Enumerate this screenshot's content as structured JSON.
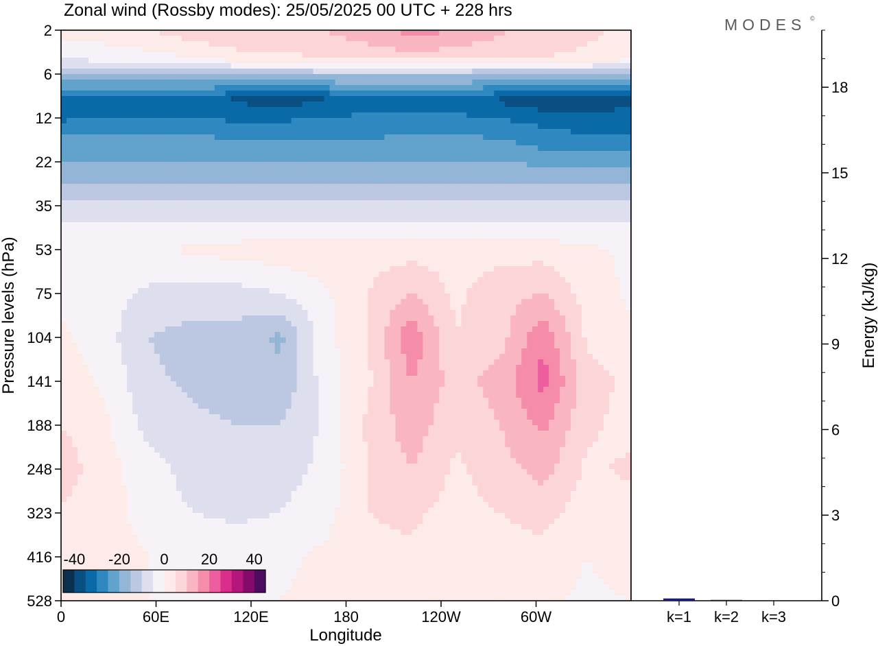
{
  "chart_data": [
    {
      "type": "heatmap",
      "title": "Zonal wind (Rossby modes):  25/05/2025  00 UTC  + 228 hrs",
      "xlabel": "Longitude",
      "ylabel": "Pressure levels (hPa)",
      "x_ticks": [
        "0",
        "60E",
        "120E",
        "180",
        "120W",
        "60W"
      ],
      "x_tick_values": [
        0,
        60,
        120,
        180,
        240,
        300
      ],
      "xlim": [
        0,
        360
      ],
      "y_ticks": [
        "2",
        "6",
        "12",
        "22",
        "35",
        "53",
        "75",
        "104",
        "141",
        "188",
        "248",
        "323",
        "416",
        "528"
      ],
      "colorbar": {
        "tick_labels": [
          "-40",
          "-20",
          "0",
          "20",
          "40"
        ],
        "tick_values": [
          -40,
          -20,
          0,
          20,
          40
        ],
        "bins": [
          -45,
          -40,
          -35,
          -30,
          -25,
          -20,
          -15,
          -10,
          -5,
          0,
          5,
          10,
          15,
          20,
          25,
          30,
          35,
          40,
          45
        ],
        "colors": [
          "#0b2f4f",
          "#0a4f82",
          "#0a6aa8",
          "#2f88bf",
          "#62a3cd",
          "#93b5d6",
          "#bcc7e1",
          "#dedfee",
          "#f6f2f7",
          "#fdebe9",
          "#fcd6d7",
          "#f9b6c1",
          "#f58ca9",
          "#ee5e9e",
          "#d92e8c",
          "#b4157a",
          "#860a6b",
          "#4d0b5f"
        ]
      },
      "field_levels": [
        {
          "p": 2,
          "u": [
            2,
            3,
            5,
            8,
            10,
            9,
            10,
            13,
            17,
            15,
            11,
            8,
            6,
            4
          ]
        },
        {
          "p": 4,
          "u": [
            -4,
            -3,
            -2,
            0,
            3,
            4,
            5,
            7,
            8,
            7,
            6,
            5,
            4,
            2
          ]
        },
        {
          "p": 6,
          "u": [
            -14,
            -14,
            -14,
            -13,
            -13,
            -13,
            -13,
            -13,
            -13,
            -13,
            -14,
            -14,
            -14,
            -14
          ]
        },
        {
          "p": 9,
          "u": [
            -33,
            -33,
            -34,
            -35,
            -36,
            -37,
            -36,
            -32,
            -32,
            -33,
            -36,
            -39,
            -38,
            -37
          ]
        },
        {
          "p": 12,
          "u": [
            -31,
            -30,
            -30,
            -30,
            -31,
            -31,
            -30,
            -29,
            -29,
            -29,
            -30,
            -32,
            -33,
            -33
          ]
        },
        {
          "p": 16,
          "u": [
            -24,
            -24,
            -24,
            -24,
            -25,
            -25,
            -25,
            -25,
            -24,
            -24,
            -25,
            -28,
            -29,
            -29
          ]
        },
        {
          "p": 22,
          "u": [
            -20,
            -20,
            -20,
            -20,
            -20,
            -20,
            -20,
            -20,
            -20,
            -20,
            -20,
            -21,
            -21,
            -21
          ]
        },
        {
          "p": 28,
          "u": [
            -15,
            -15,
            -15,
            -15,
            -15,
            -15,
            -15,
            -15,
            -15,
            -15,
            -15,
            -15,
            -15,
            -15
          ]
        },
        {
          "p": 35,
          "u": [
            -9,
            -9,
            -9,
            -9,
            -9,
            -9,
            -9,
            -9,
            -9,
            -9,
            -9,
            -9,
            -9,
            -9
          ]
        },
        {
          "p": 44,
          "u": [
            -4,
            -3,
            -3,
            -3,
            -3,
            -3,
            -3,
            -3,
            -3,
            -3,
            -3,
            -3,
            -3,
            -4
          ]
        },
        {
          "p": 53,
          "u": [
            -1,
            -1,
            -1,
            1,
            2,
            3,
            3,
            3,
            3,
            3,
            3,
            3,
            1,
            -1
          ]
        },
        {
          "p": 75,
          "u": [
            -1,
            -3,
            -6,
            -7,
            -7,
            -5,
            -1,
            5,
            10,
            4,
            8,
            10,
            3,
            -1
          ]
        },
        {
          "p": 104,
          "u": [
            1,
            -3,
            -10,
            -12,
            -12,
            -16,
            -2,
            5,
            19,
            5,
            8,
            19,
            4,
            1
          ]
        },
        {
          "p": 141,
          "u": [
            3,
            -1,
            -9,
            -11,
            -12,
            -14,
            -3,
            4,
            15,
            8,
            12,
            22,
            7,
            4
          ]
        },
        {
          "p": 188,
          "u": [
            5,
            1,
            -7,
            -9,
            -10,
            -10,
            -4,
            6,
            13,
            6,
            10,
            16,
            6,
            3
          ]
        },
        {
          "p": 248,
          "u": [
            8,
            2,
            -3,
            -7,
            -8,
            -7,
            -4,
            5,
            10,
            4,
            8,
            12,
            4,
            6
          ]
        },
        {
          "p": 323,
          "u": [
            4,
            2,
            -2,
            -5,
            -6,
            -5,
            -2,
            5,
            6,
            3,
            5,
            7,
            2,
            3
          ]
        },
        {
          "p": 416,
          "u": [
            2,
            2,
            0,
            -1,
            -2,
            -1,
            1,
            4,
            4,
            2,
            3,
            3,
            0,
            2
          ]
        },
        {
          "p": 528,
          "u": [
            1,
            1,
            0,
            0,
            0,
            0,
            1,
            3,
            3,
            1,
            2,
            1,
            -1,
            0
          ]
        }
      ]
    },
    {
      "type": "bar",
      "ylabel": "Energy (kJ/kg)",
      "categories": [
        "k=1",
        "k=2",
        "k=3"
      ],
      "values": [
        0.08,
        0.03,
        0.0
      ],
      "ylim": [
        0,
        20
      ],
      "y_ticks": [
        0,
        3,
        6,
        9,
        12,
        15,
        18
      ],
      "bar_colors": [
        "#1a1a8c",
        "#222222",
        "#222222"
      ]
    }
  ],
  "logo": {
    "text": "MODES",
    "mark": "©"
  }
}
